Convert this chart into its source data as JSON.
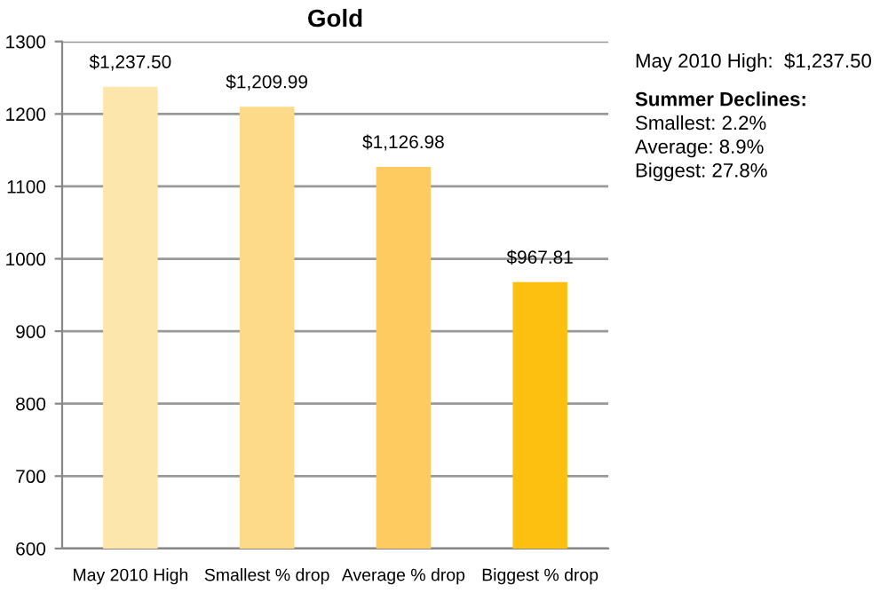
{
  "chart_data": {
    "type": "bar",
    "title": "Gold",
    "categories": [
      "May 2010 High",
      "Smallest % drop",
      "Average % drop",
      "Biggest % drop"
    ],
    "values": [
      1237.5,
      1209.99,
      1126.98,
      967.81
    ],
    "colors": [
      "#fde6ab",
      "#fdd98a",
      "#fdcb5f",
      "#fec010"
    ],
    "value_labels": [
      "$1,237.50",
      "$1,209.99",
      "$1,126.98",
      "$967.81"
    ],
    "ylim": [
      600,
      1300
    ],
    "yticks": [
      600,
      700,
      800,
      900,
      1000,
      1100,
      1200,
      1300
    ],
    "grid": "y",
    "annotations": [
      "May 2010 High:  $1,237.50",
      "Summer Declines:",
      "Smallest: 2.2%",
      "Average: 8.9%",
      "Biggest: 27.8%"
    ]
  }
}
